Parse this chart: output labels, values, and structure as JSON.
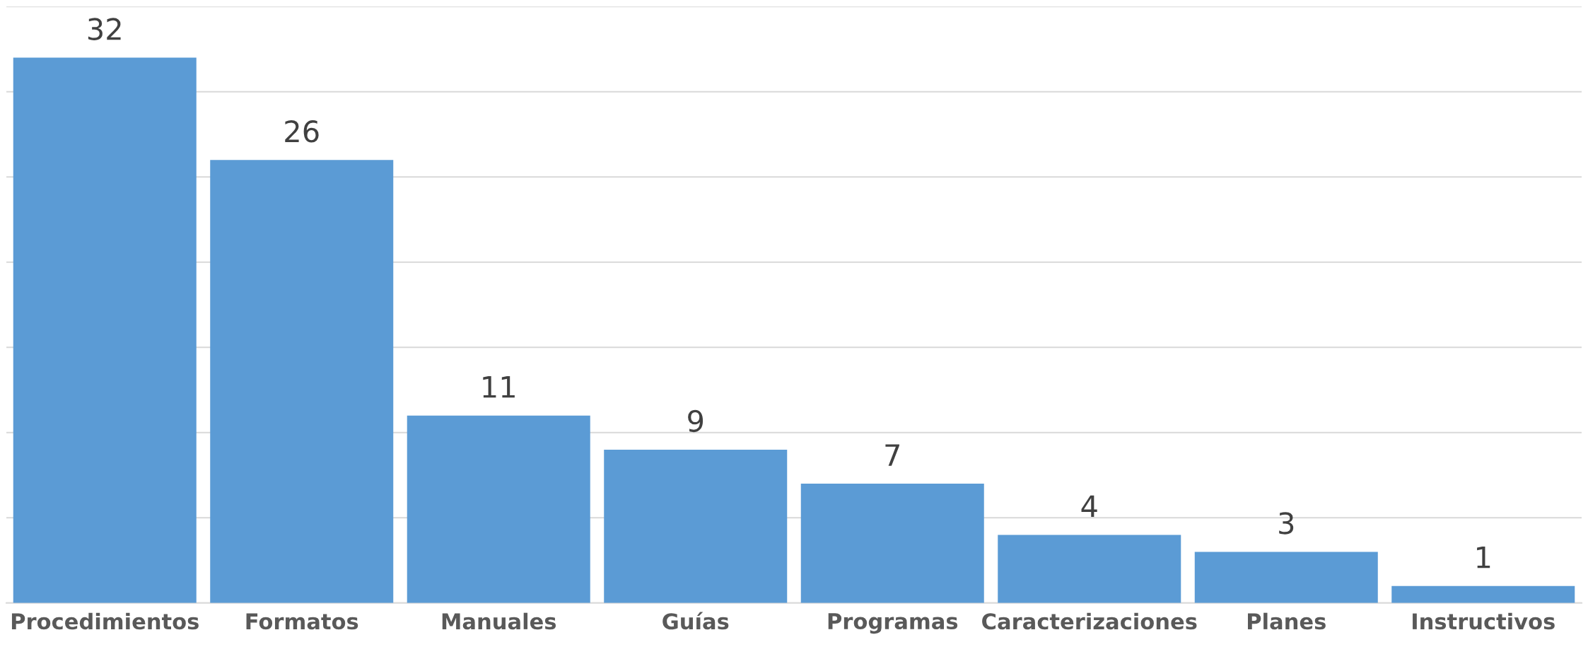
{
  "chart_data": {
    "type": "bar",
    "categories": [
      "Procedimientos",
      "Formatos",
      "Manuales",
      "Guías",
      "Programas",
      "Caracterizaciones",
      "Planes",
      "Instructivos"
    ],
    "values": [
      32,
      26,
      11,
      9,
      7,
      4,
      3,
      1
    ],
    "color": "#5b9bd5",
    "ylim": [
      0,
      35
    ],
    "yticks": [
      {
        "value": 0,
        "label": null
      },
      {
        "value": 5,
        "label": null
      },
      {
        "value": 10,
        "label": null
      },
      {
        "value": 15,
        "label": null
      },
      {
        "value": 20,
        "label": null
      },
      {
        "value": 25,
        "label": null
      },
      {
        "value": 30,
        "label": null
      },
      {
        "value": 35,
        "label": null
      }
    ],
    "tick_labels": "x",
    "grid": "y",
    "data_labels": true
  }
}
